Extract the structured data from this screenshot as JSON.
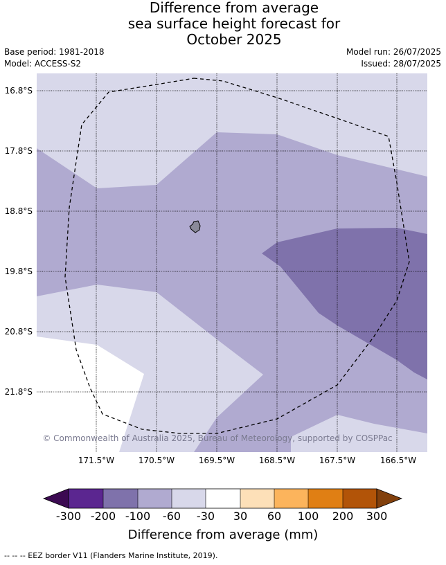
{
  "title": {
    "line1": "Difference from average",
    "line2": "sea surface height forecast for",
    "line3": "October 2025"
  },
  "info": {
    "base_period": "Base period: 1981-2018",
    "model": "Model: ACCESS-S2",
    "model_run": "Model run: 26/07/2025",
    "issued": "Issued: 28/07/2025"
  },
  "map": {
    "lat_labels": [
      "16.8°S",
      "17.8°S",
      "18.8°S",
      "19.8°S",
      "20.8°S",
      "21.8°S"
    ],
    "lon_labels": [
      "171.5°W",
      "170.5°W",
      "169.5°W",
      "168.5°W",
      "167.5°W",
      "166.5°W"
    ],
    "copyright": "© Commonwealth of Australia 2025, Bureau of Meteorology, supported by COSPPac",
    "colors": {
      "cat_-30_-60": "#d8d8ea",
      "cat_-60_-100": "#b0aad0",
      "cat_-100_-200": "#7f72ab",
      "island": "#8a8a9a"
    }
  },
  "colorbar": {
    "tick_labels": [
      "-300",
      "-200",
      "-100",
      "-60",
      "-30",
      "30",
      "60",
      "100",
      "200",
      "300"
    ],
    "colors": [
      "#3c0a52",
      "#5b2690",
      "#7f72ab",
      "#b0aad0",
      "#d8d8ea",
      "#ffffff",
      "#fde0b8",
      "#fcb45c",
      "#e07f14",
      "#b25408",
      "#82400c"
    ],
    "title": "Difference from average (mm)"
  },
  "footer": "--  --  -- EEZ border V11 (Flanders Marine Institute, 2019)."
}
